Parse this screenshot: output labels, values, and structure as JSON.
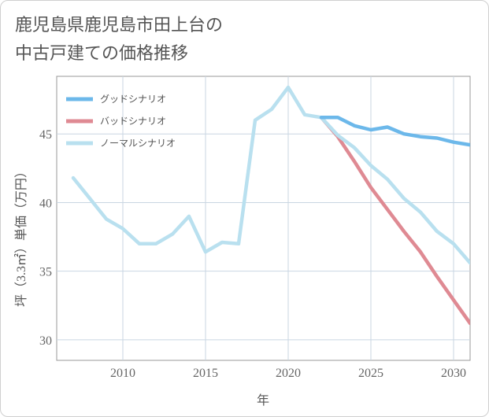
{
  "title": {
    "line1": "鹿児島県鹿児島市田上台の",
    "line2": "中古戸建ての価格推移"
  },
  "colors": {
    "good": "#6cb8ea",
    "bad": "#df8a93",
    "normal": "#b9e0ef",
    "grid": "#c9d6e2",
    "axis": "#555555"
  },
  "chart_data": {
    "type": "line",
    "title": "鹿児島県鹿児島市田上台の中古戸建ての価格推移",
    "xlabel": "年",
    "ylabel": "坪（3.3㎡）単価（万円）",
    "xlim": [
      2006,
      2031
    ],
    "ylim": [
      28.5,
      49.2
    ],
    "xticks": [
      2010,
      2015,
      2020,
      2025,
      2030
    ],
    "xtick_labels": [
      "2010",
      "2015",
      "2020",
      "2025",
      "2030"
    ],
    "yticks": [
      30,
      35,
      40,
      45
    ],
    "ytick_labels": [
      "30",
      "35",
      "40",
      "45"
    ],
    "grid": true,
    "legend_position": "top-left",
    "series": [
      {
        "name": "グッドシナリオ",
        "key": "good",
        "x": [
          2022,
          2023,
          2024,
          2025,
          2026,
          2027,
          2028,
          2029,
          2030,
          2031
        ],
        "values": [
          46.2,
          46.2,
          45.6,
          45.3,
          45.5,
          45.0,
          44.8,
          44.7,
          44.4,
          44.2
        ]
      },
      {
        "name": "バッドシナリオ",
        "key": "bad",
        "x": [
          2022,
          2023,
          2024,
          2025,
          2026,
          2027,
          2028,
          2029,
          2030,
          2031
        ],
        "values": [
          46.2,
          44.8,
          43.0,
          41.1,
          39.5,
          37.9,
          36.4,
          34.6,
          32.9,
          31.2
        ]
      },
      {
        "name": "ノーマルシナリオ",
        "key": "normal",
        "x": [
          2007,
          2008,
          2009,
          2010,
          2011,
          2012,
          2013,
          2014,
          2015,
          2016,
          2017,
          2018,
          2019,
          2020,
          2021,
          2022,
          2023,
          2024,
          2025,
          2026,
          2027,
          2028,
          2029,
          2030,
          2031
        ],
        "values": [
          41.8,
          40.3,
          38.8,
          38.1,
          37.0,
          37.0,
          37.7,
          39.0,
          36.4,
          37.1,
          37.0,
          46.0,
          46.8,
          48.4,
          46.4,
          46.2,
          44.9,
          44.0,
          42.7,
          41.7,
          40.3,
          39.3,
          37.9,
          37.0,
          35.6
        ]
      }
    ]
  }
}
